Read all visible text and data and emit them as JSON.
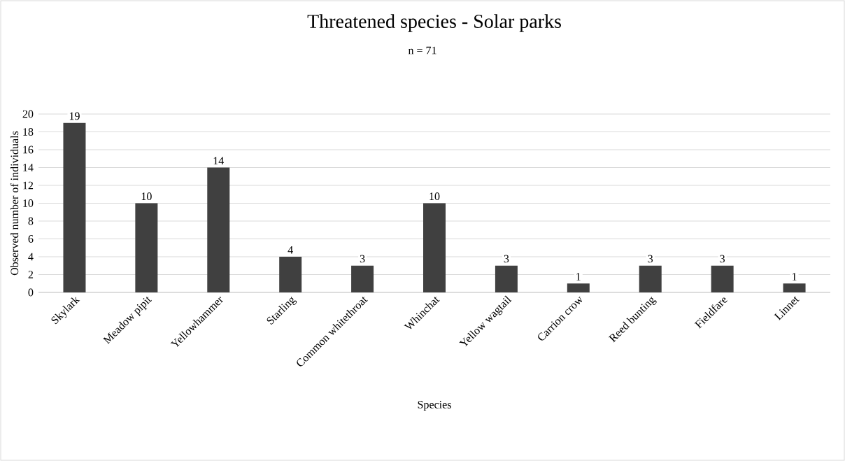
{
  "chart_data": {
    "type": "bar",
    "title": "Threatened species - Solar parks",
    "subtitle": "n = 71",
    "xlabel": "Species",
    "ylabel": "Observed number of individuals",
    "categories": [
      "Skylark",
      "Meadow pipit",
      "Yellowhammer",
      "Starling",
      "Common whitethroat",
      "Whinchat",
      "Yellow wagtail",
      "Carrion crow",
      "Reed bunting",
      "Fieldfare",
      "Linnet"
    ],
    "values": [
      19,
      10,
      14,
      4,
      3,
      10,
      3,
      1,
      3,
      3,
      1
    ],
    "color": "#404040",
    "ylim": [
      0,
      20
    ],
    "yticks": [
      0,
      2,
      4,
      6,
      8,
      10,
      12,
      14,
      16,
      18,
      20
    ],
    "grid": "y",
    "data_labels": true
  }
}
